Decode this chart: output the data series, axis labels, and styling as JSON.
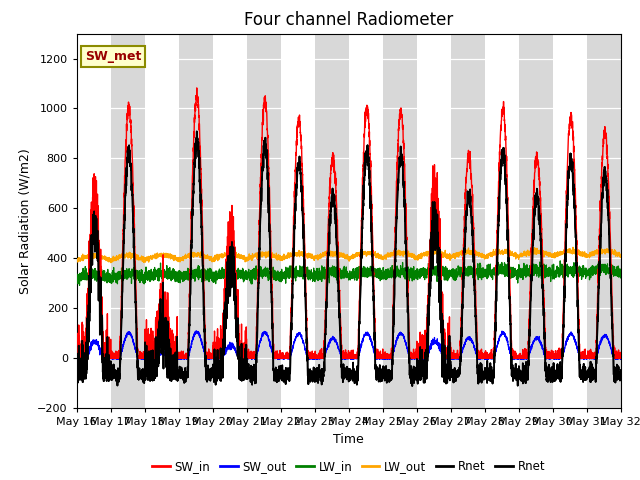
{
  "title": "Four channel Radiometer",
  "xlabel": "Time",
  "ylabel": "Solar Radiation (W/m2)",
  "ylim": [
    -200,
    1300
  ],
  "yticks": [
    -200,
    0,
    200,
    400,
    600,
    800,
    1000,
    1200
  ],
  "plot_bg_color": "#f0f0f0",
  "band_color_dark": "#d8d8d8",
  "annotation_text": "SW_met",
  "annotation_bg": "#ffffcc",
  "annotation_border": "#8b8b00",
  "annotation_text_color": "#990000",
  "n_days": 16,
  "start_day": 16,
  "points_per_day": 288,
  "sw_in_peak": 1050,
  "lw_in_base": 320,
  "lw_out_base": 380
}
